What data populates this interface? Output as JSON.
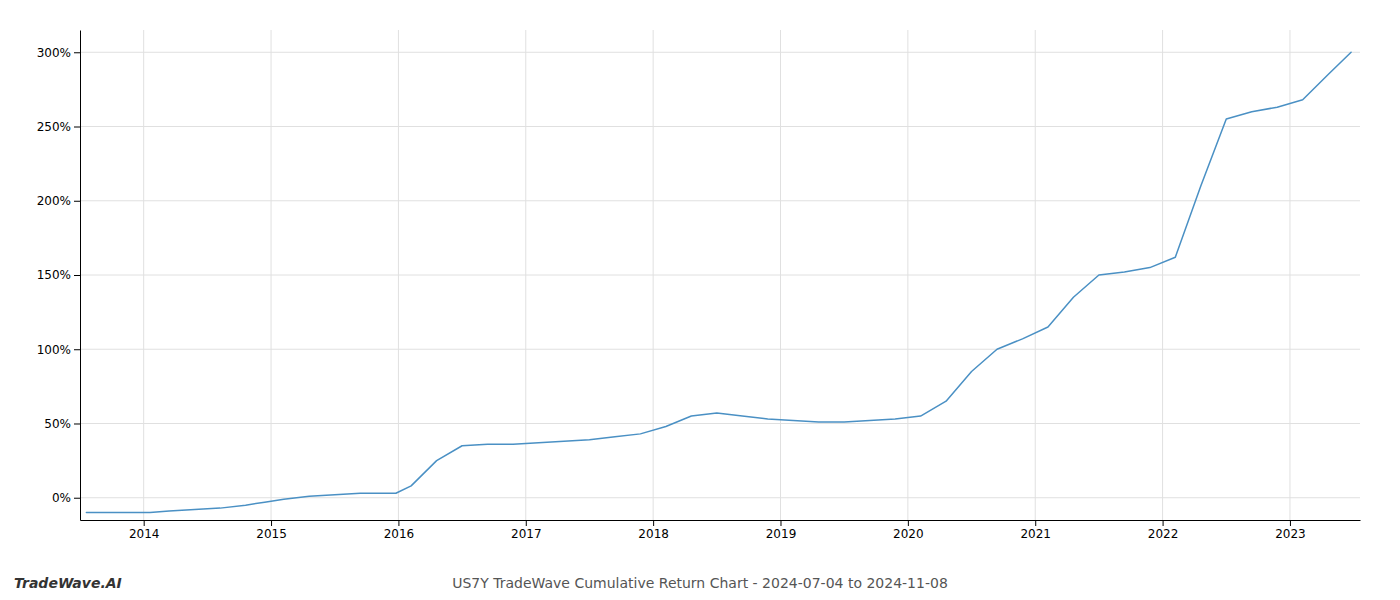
{
  "chart_data": {
    "type": "line",
    "title": "US7Y TradeWave Cumulative Return Chart - 2024-07-04 to 2024-11-08",
    "annotations": [
      "TradeWave.AI"
    ],
    "color": "#4a90c4",
    "grid": true,
    "x": [
      2013.55,
      2013.65,
      2013.75,
      2013.85,
      2013.95,
      2014.05,
      2014.2,
      2014.4,
      2014.6,
      2014.8,
      2014.95,
      2015.1,
      2015.3,
      2015.5,
      2015.7,
      2015.9,
      2015.98,
      2016.1,
      2016.3,
      2016.5,
      2016.7,
      2016.9,
      2017.1,
      2017.3,
      2017.5,
      2017.7,
      2017.9,
      2018.1,
      2018.3,
      2018.5,
      2018.7,
      2018.9,
      2019.1,
      2019.3,
      2019.5,
      2019.7,
      2019.9,
      2020.1,
      2020.3,
      2020.5,
      2020.7,
      2020.9,
      2021.1,
      2021.3,
      2021.5,
      2021.7,
      2021.9,
      2022.1,
      2022.3,
      2022.5,
      2022.7,
      2022.9,
      2023.1,
      2023.3,
      2023.48
    ],
    "values": [
      -10,
      -10,
      -10,
      -10,
      -10,
      -10,
      -9,
      -8,
      -7,
      -5,
      -3,
      -1,
      1,
      2,
      3,
      3,
      3,
      8,
      25,
      35,
      36,
      36,
      37,
      38,
      39,
      41,
      43,
      48,
      55,
      57,
      55,
      53,
      52,
      51,
      51,
      52,
      53,
      55,
      65,
      85,
      100,
      107,
      115,
      135,
      150,
      152,
      155,
      162,
      210,
      255,
      260,
      263,
      268,
      285,
      300
    ],
    "xlim": [
      2013.5,
      2023.55
    ],
    "ylim": [
      -15,
      315
    ],
    "xticks": [
      2014,
      2015,
      2016,
      2017,
      2018,
      2019,
      2020,
      2021,
      2022,
      2023
    ],
    "yticks": [
      {
        "value": 0,
        "label": "0%"
      },
      {
        "value": 50,
        "label": "50%"
      },
      {
        "value": 100,
        "label": "100%"
      },
      {
        "value": 150,
        "label": "150%"
      },
      {
        "value": 200,
        "label": "200%"
      },
      {
        "value": 250,
        "label": "250%"
      },
      {
        "value": 300,
        "label": "300%"
      }
    ]
  }
}
